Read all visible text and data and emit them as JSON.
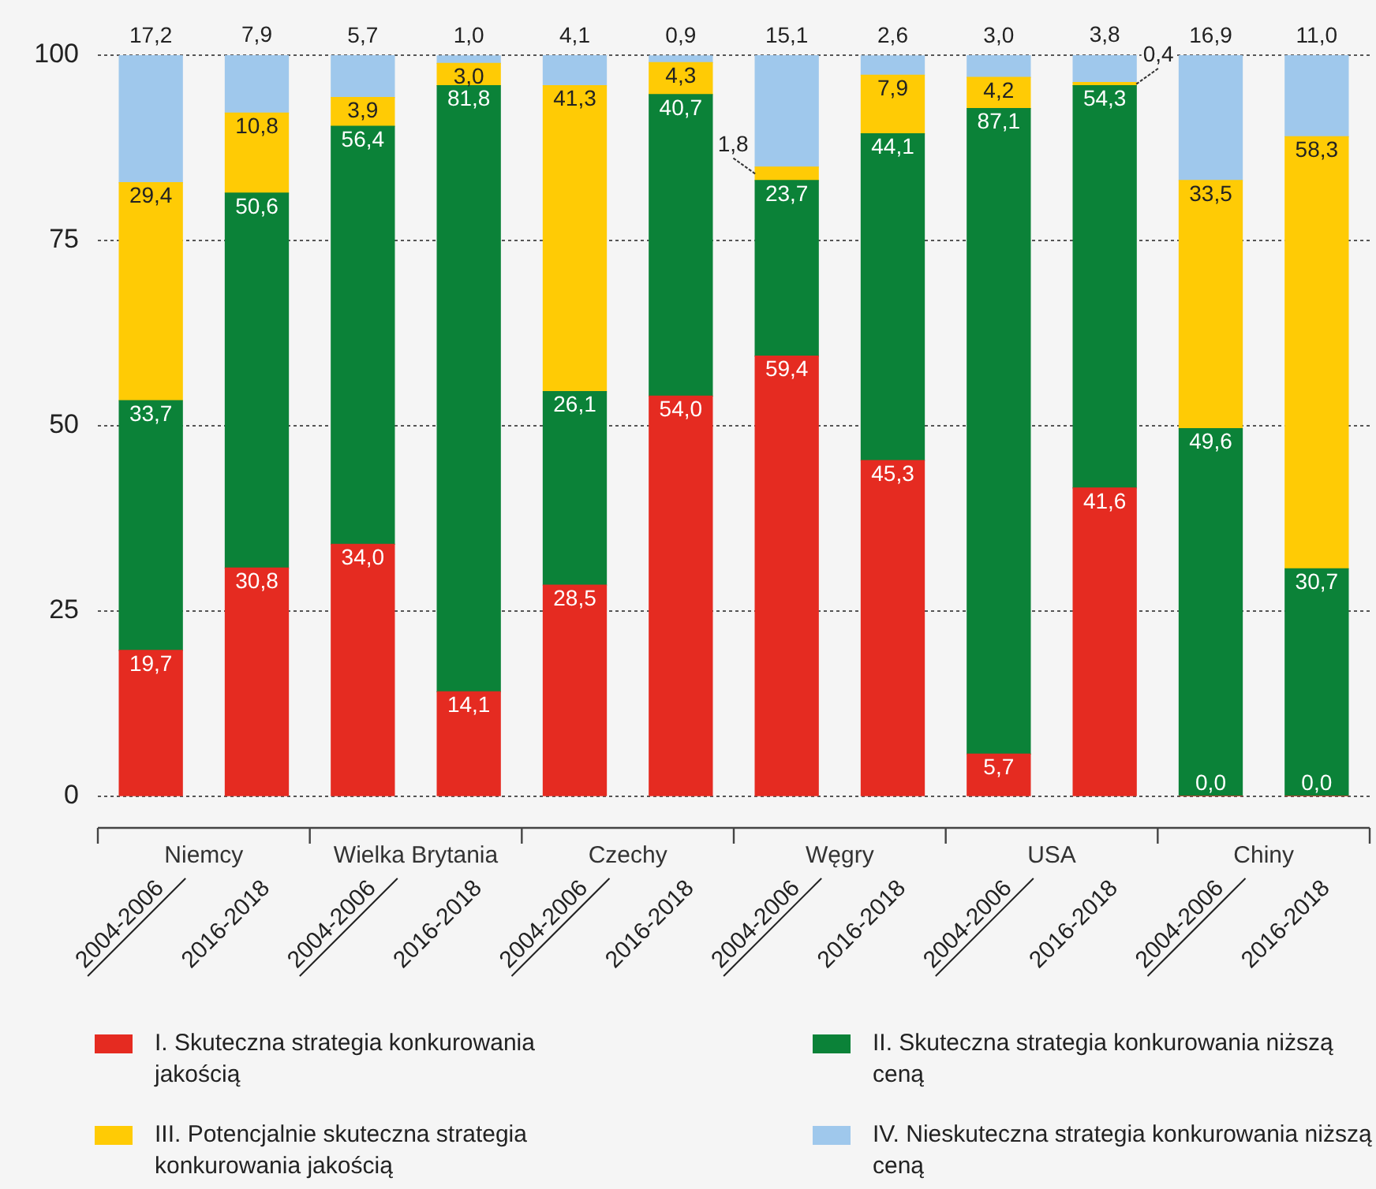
{
  "chart_data": {
    "type": "bar",
    "stacked": true,
    "categories": [
      "2004-2006",
      "2016-2018",
      "2004-2006",
      "2016-2018",
      "2004-2006",
      "2016-2018",
      "2004-2006",
      "2016-2018",
      "2004-2006",
      "2016-2018",
      "2004-2006",
      "2016-2018"
    ],
    "annotations": [
      "Niemcy",
      "Wielka Brytania",
      "Czechy",
      "Węgry",
      "USA",
      "Chiny"
    ],
    "series": [
      {
        "name": "I. Skuteczna strategia konkurowania jakością",
        "color": "#e52b21",
        "values": [
          19.7,
          30.8,
          34.0,
          14.1,
          28.5,
          54.0,
          59.4,
          45.3,
          5.7,
          41.6,
          0.0,
          0.0
        ],
        "value_labels": [
          "19,7",
          "30,8",
          "34,0",
          "14,1",
          "28,5",
          "54,0",
          "59,4",
          "45,3",
          "5,7",
          "41,6",
          "0,0",
          "0,0"
        ]
      },
      {
        "name": "II. Skuteczna strategia konkurowania niższą ceną",
        "color": "#0b8238",
        "values": [
          33.7,
          50.6,
          56.4,
          81.8,
          26.1,
          40.7,
          23.7,
          44.1,
          87.1,
          54.3,
          49.6,
          30.7
        ],
        "value_labels": [
          "33,7",
          "50,6",
          "56,4",
          "81,8",
          "26,1",
          "40,7",
          "23,7",
          "44,1",
          "87,1",
          "54,3",
          "49,6",
          "30,7"
        ]
      },
      {
        "name": "III. Potencjalnie skuteczna strategia konkurowania jakością",
        "color": "#ffcb05",
        "values": [
          29.4,
          10.8,
          3.9,
          3.0,
          41.3,
          4.3,
          1.8,
          7.9,
          4.2,
          0.4,
          33.5,
          58.3
        ],
        "value_labels": [
          "29,4",
          "10,8",
          "3,9",
          "3,0",
          "41,3",
          "4,3",
          "1,8",
          "7,9",
          "4,2",
          "0,4",
          "33,5",
          "58,3"
        ]
      },
      {
        "name": "IV. Nieskuteczna strategia konkurowania niższą ceną",
        "color": "#9fc8ec",
        "values": [
          17.2,
          7.9,
          5.7,
          1.0,
          4.1,
          0.9,
          15.1,
          2.6,
          3.0,
          3.8,
          16.9,
          11.0
        ],
        "value_labels": [
          "17,2",
          "7,9",
          "5,7",
          "1,0",
          "4,1",
          "0,9",
          "15,1",
          "2,6",
          "3,0",
          "3,8",
          "16,9",
          "11,0"
        ]
      }
    ],
    "ylim": [
      0,
      100
    ],
    "yticks": [
      0,
      25,
      50,
      75,
      100
    ],
    "grid": "y",
    "legend": "bottom"
  }
}
